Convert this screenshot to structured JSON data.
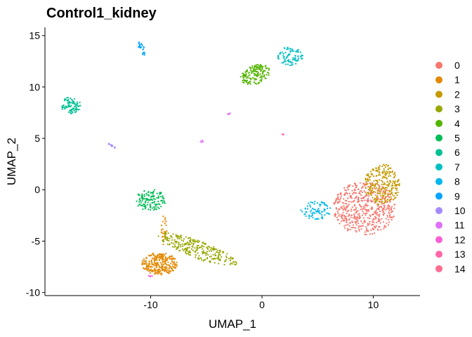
{
  "chart_data": {
    "type": "scatter",
    "title": "Control1_kidney",
    "xlabel": "UMAP_1",
    "ylabel": "UMAP_2",
    "xlim": [
      -19.5,
      14.2
    ],
    "ylim": [
      -10.3,
      15.8
    ],
    "xticks": [
      -10,
      0,
      10
    ],
    "xtick_labels": [
      "-10",
      "0",
      "10"
    ],
    "yticks": [
      15,
      10,
      5,
      0,
      -5,
      -10
    ],
    "ytick_labels": [
      "15",
      "10",
      "5",
      "0",
      "-5",
      "-10"
    ],
    "grid": false,
    "legend_position": "right",
    "legend_title": "",
    "clusters": [
      {
        "name": "0",
        "color": "#F8766D",
        "regions": [
          {
            "cx": 9.2,
            "cy": -1.8,
            "rx": 2.8,
            "ry": 2.6,
            "n": 520
          }
        ]
      },
      {
        "name": "1",
        "color": "#E38900",
        "regions": [
          {
            "cx": -9.2,
            "cy": -7.2,
            "rx": 1.6,
            "ry": 1.1,
            "n": 280
          },
          {
            "cx": -8.8,
            "cy": -3.8,
            "rx": 0.25,
            "ry": 1.6,
            "n": 25
          }
        ]
      },
      {
        "name": "2",
        "color": "#C49A00",
        "regions": [
          {
            "cx": 10.8,
            "cy": 0.5,
            "rx": 1.6,
            "ry": 2.0,
            "n": 260
          }
        ]
      },
      {
        "name": "3",
        "color": "#99A800",
        "regions": [
          {
            "cx": -5.8,
            "cy": -5.8,
            "rx": 3.8,
            "ry": 0.85,
            "angle": -22,
            "n": 270
          }
        ]
      },
      {
        "name": "4",
        "color": "#53B400",
        "regions": [
          {
            "cx": -0.6,
            "cy": 11.2,
            "rx": 1.4,
            "ry": 0.9,
            "angle": 25,
            "n": 160
          }
        ]
      },
      {
        "name": "5",
        "color": "#00BC56",
        "regions": [
          {
            "cx": -10.0,
            "cy": -1.0,
            "rx": 1.4,
            "ry": 1.1,
            "n": 130
          }
        ]
      },
      {
        "name": "6",
        "color": "#00C094",
        "regions": [
          {
            "cx": -17.2,
            "cy": 8.2,
            "rx": 0.9,
            "ry": 0.8,
            "n": 90
          }
        ]
      },
      {
        "name": "7",
        "color": "#00BFC4",
        "regions": [
          {
            "cx": 2.5,
            "cy": 13.0,
            "rx": 1.2,
            "ry": 0.9,
            "n": 90
          }
        ]
      },
      {
        "name": "8",
        "color": "#00B6EB",
        "regions": [
          {
            "cx": 4.8,
            "cy": -2.0,
            "rx": 1.4,
            "ry": 0.9,
            "n": 80
          }
        ]
      },
      {
        "name": "9",
        "color": "#06A4FF",
        "regions": [
          {
            "cx": -10.8,
            "cy": 13.7,
            "rx": 0.25,
            "ry": 0.7,
            "angle": 20,
            "n": 25
          }
        ]
      },
      {
        "name": "10",
        "color": "#A58AFF",
        "regions": [
          {
            "cx": -13.5,
            "cy": 4.3,
            "rx": 0.5,
            "ry": 0.08,
            "angle": -35,
            "n": 14
          }
        ]
      },
      {
        "name": "11",
        "color": "#DF70F8",
        "regions": [
          {
            "cx": -5.4,
            "cy": 4.7,
            "rx": 0.15,
            "ry": 0.12,
            "n": 5
          },
          {
            "cx": -3.0,
            "cy": 7.4,
            "rx": 0.2,
            "ry": 0.1,
            "n": 4
          }
        ]
      },
      {
        "name": "12",
        "color": "#FB61D7",
        "regions": [
          {
            "cx": -10.0,
            "cy": -8.4,
            "rx": 0.2,
            "ry": 0.12,
            "n": 5
          }
        ]
      },
      {
        "name": "13",
        "color": "#FF66A8",
        "regions": [
          {
            "cx": 1.9,
            "cy": 5.4,
            "rx": 0.1,
            "ry": 0.1,
            "n": 3
          }
        ]
      },
      {
        "name": "14",
        "color": "#FF6C91",
        "regions": [
          {
            "cx": 9.5,
            "cy": -1.0,
            "rx": 0.3,
            "ry": 0.3,
            "n": 4
          }
        ]
      }
    ]
  }
}
